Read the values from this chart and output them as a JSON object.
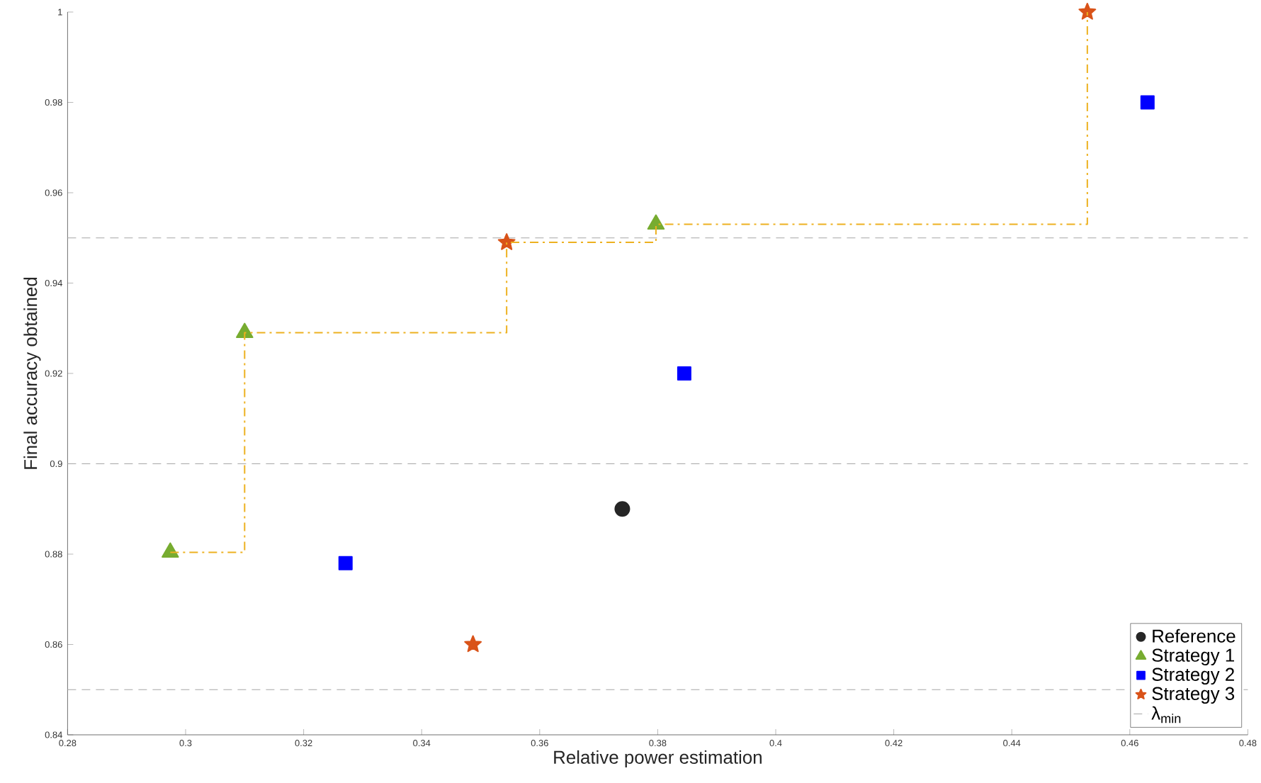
{
  "chart_data": {
    "type": "scatter",
    "xlabel": "Relative power estimation",
    "ylabel": "Final accuracy obtained",
    "xlim": [
      0.28,
      0.48
    ],
    "ylim": [
      0.84,
      1
    ],
    "xticks": [
      0.28,
      0.3,
      0.32,
      0.34,
      0.36,
      0.38,
      0.4,
      0.42,
      0.44,
      0.46,
      0.48
    ],
    "yticks": [
      0.84,
      0.86,
      0.88,
      0.9,
      0.92,
      0.94,
      0.96,
      0.98,
      1
    ],
    "grid": false,
    "legend": "bottom right",
    "series": [
      {
        "name": "Reference",
        "color": "#262626",
        "marker": "circle",
        "x": [
          0.374
        ],
        "values": [
          0.89
        ]
      },
      {
        "name": "Strategy 1",
        "color": "#77ac30",
        "marker": "triangle",
        "x": [
          0.2974,
          0.31,
          0.3797
        ],
        "values": [
          0.8804,
          0.929,
          0.953
        ]
      },
      {
        "name": "Strategy 2",
        "color": "#0000ff",
        "marker": "square",
        "x": [
          0.3271,
          0.3845,
          0.463
        ],
        "values": [
          0.878,
          0.92,
          0.98
        ]
      },
      {
        "name": "Strategy 3",
        "color": "#d95319",
        "marker": "star",
        "x": [
          0.3487,
          0.3544,
          0.4528
        ],
        "values": [
          0.86,
          0.949,
          1.0
        ]
      },
      {
        "type": "step",
        "color": "#edb120",
        "line_style": "dashdot",
        "marker": "none",
        "x": [
          0.2974,
          0.31,
          0.3544,
          0.3797,
          0.4528
        ],
        "values": [
          0.8804,
          0.929,
          0.949,
          0.953,
          1.0
        ]
      }
    ],
    "ref_lines": [
      {
        "axis": "y",
        "value": 0.85,
        "label": "λ$_{min}$",
        "color": "#a6a6a6",
        "line_style": "dashed"
      },
      {
        "axis": "y",
        "value": 0.9,
        "color": "#a6a6a6",
        "line_style": "dashed"
      },
      {
        "axis": "y",
        "value": 0.95,
        "color": "#a6a6a6",
        "line_style": "dashed"
      }
    ]
  }
}
